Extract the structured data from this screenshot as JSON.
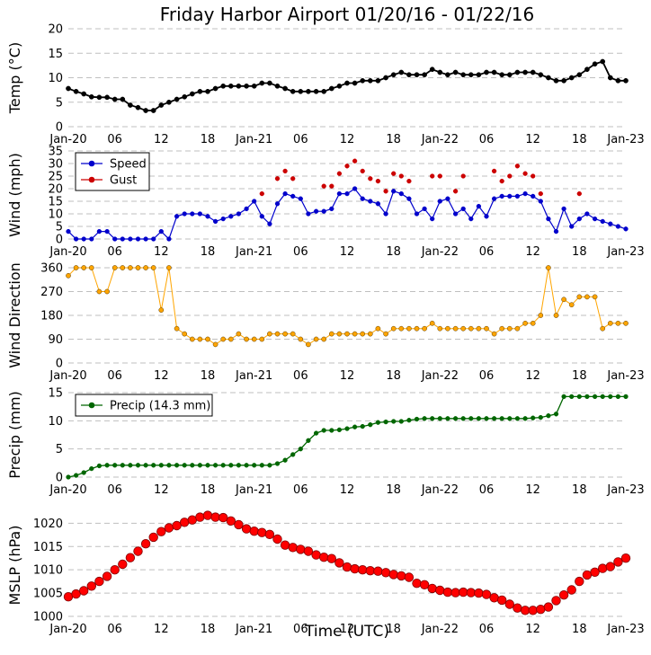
{
  "title": "Friday Harbor Airport 01/20/16 - 01/22/16",
  "xlabel": "Time (UTC)",
  "x_ticks": [
    "Jan-20",
    "06",
    "12",
    "18",
    "Jan-21",
    "06",
    "12",
    "18",
    "Jan-22",
    "06",
    "12",
    "18",
    "Jan-23"
  ],
  "colors": {
    "temp": "#000000",
    "speed": "#0000cc",
    "gust": "#cc0000",
    "direction": "#ffa500",
    "precip": "#006600",
    "mslp": "#ff0000",
    "grid": "#bfbfbf"
  },
  "chart_data": [
    {
      "type": "line",
      "id": "temp",
      "ylabel": "Temp (°C)",
      "ylim": [
        0,
        20
      ],
      "yticks": [
        "0",
        "5",
        "10",
        "15",
        "20"
      ],
      "x_unit": "hours since Jan-20 00 UTC",
      "series": [
        {
          "name": "Temp",
          "x": [
            0,
            1,
            2,
            3,
            4,
            5,
            6,
            7,
            8,
            9,
            10,
            11,
            12,
            13,
            14,
            15,
            16,
            17,
            18,
            19,
            20,
            21,
            22,
            23,
            24,
            25,
            26,
            27,
            28,
            29,
            30,
            31,
            32,
            33,
            34,
            35,
            36,
            37,
            38,
            39,
            40,
            41,
            42,
            43,
            44,
            45,
            46,
            47,
            48,
            49,
            50,
            51,
            52,
            53,
            54,
            55,
            56,
            57,
            58,
            59,
            60,
            61,
            62,
            63,
            64,
            65,
            66,
            67,
            68,
            69,
            70,
            71,
            72
          ],
          "y": [
            7.8,
            7.2,
            6.7,
            6.1,
            6.0,
            6.0,
            5.6,
            5.6,
            4.4,
            3.9,
            3.3,
            3.3,
            4.4,
            5.0,
            5.6,
            6.1,
            6.7,
            7.2,
            7.2,
            7.8,
            8.3,
            8.3,
            8.3,
            8.3,
            8.3,
            8.9,
            8.9,
            8.3,
            7.8,
            7.2,
            7.2,
            7.2,
            7.2,
            7.2,
            7.8,
            8.3,
            8.9,
            8.9,
            9.4,
            9.4,
            9.4,
            10.0,
            10.6,
            11.1,
            10.6,
            10.6,
            10.6,
            11.7,
            11.1,
            10.6,
            11.1,
            10.6,
            10.6,
            10.6,
            11.1,
            11.1,
            10.6,
            10.6,
            11.1,
            11.1,
            11.1,
            10.6,
            10.0,
            9.4,
            9.4,
            10.0,
            10.6,
            11.7,
            12.8,
            13.3,
            10.0,
            9.4,
            9.4
          ]
        }
      ]
    },
    {
      "type": "line",
      "id": "wind",
      "ylabel": "Wind (mph)",
      "ylim": [
        0,
        35
      ],
      "yticks": [
        "0",
        "5",
        "10",
        "15",
        "20",
        "25",
        "30",
        "35"
      ],
      "legend": "upper-left",
      "series": [
        {
          "name": "Speed",
          "x": [
            0,
            1,
            2,
            3,
            4,
            5,
            6,
            7,
            8,
            9,
            10,
            11,
            12,
            13,
            14,
            15,
            16,
            17,
            18,
            19,
            20,
            21,
            22,
            23,
            24,
            25,
            26,
            27,
            28,
            29,
            30,
            31,
            32,
            33,
            34,
            35,
            36,
            37,
            38,
            39,
            40,
            41,
            42,
            43,
            44,
            45,
            46,
            47,
            48,
            49,
            50,
            51,
            52,
            53,
            54,
            55,
            56,
            57,
            58,
            59,
            60,
            61,
            62,
            63,
            64,
            65,
            66,
            67,
            68,
            69,
            70,
            71,
            72
          ],
          "y": [
            3,
            0,
            0,
            0,
            3,
            3,
            0,
            0,
            0,
            0,
            0,
            0,
            3,
            0,
            9,
            10,
            10,
            10,
            9,
            7,
            8,
            9,
            10,
            12,
            15,
            9,
            6,
            14,
            18,
            17,
            16,
            10,
            11,
            11,
            12,
            18,
            18,
            20,
            16,
            15,
            14,
            10,
            19,
            18,
            16,
            10,
            12,
            8,
            15,
            16,
            10,
            12,
            8,
            13,
            9,
            16,
            17,
            17,
            17,
            18,
            17,
            15,
            8,
            3,
            12,
            5,
            8,
            10,
            8,
            7,
            6,
            5,
            4
          ]
        },
        {
          "name": "Gust",
          "x": [
            25,
            27,
            28,
            29,
            31,
            33,
            34,
            35,
            36,
            37,
            38,
            39,
            40,
            41,
            42,
            43,
            44,
            45,
            46,
            47,
            48,
            49,
            50,
            51,
            52,
            53,
            54,
            55,
            56,
            57,
            58,
            59,
            60,
            61,
            62,
            63,
            64,
            65,
            66,
            67,
            68
          ],
          "y": [
            18,
            24,
            27,
            24,
            null,
            21,
            21,
            26,
            29,
            31,
            27,
            24,
            23,
            19,
            26,
            25,
            23,
            null,
            null,
            25,
            25,
            null,
            19,
            25,
            null,
            null,
            null,
            27,
            23,
            25,
            29,
            26,
            25,
            18,
            null,
            null,
            null,
            null,
            18,
            null,
            null
          ]
        }
      ]
    },
    {
      "type": "line",
      "id": "direction",
      "ylabel": "Wind Direction",
      "ylim": [
        0,
        360
      ],
      "yticks": [
        "0",
        "90",
        "180",
        "270",
        "360"
      ],
      "series": [
        {
          "name": "Direction",
          "x": [
            0,
            1,
            2,
            3,
            4,
            5,
            6,
            7,
            8,
            9,
            10,
            11,
            12,
            13,
            14,
            15,
            16,
            17,
            18,
            19,
            20,
            21,
            22,
            23,
            24,
            25,
            26,
            27,
            28,
            29,
            30,
            31,
            32,
            33,
            34,
            35,
            36,
            37,
            38,
            39,
            40,
            41,
            42,
            43,
            44,
            45,
            46,
            47,
            48,
            49,
            50,
            51,
            52,
            53,
            54,
            55,
            56,
            57,
            58,
            59,
            60,
            61,
            62,
            63,
            64,
            65,
            66,
            67,
            68,
            69,
            70,
            71,
            72
          ],
          "y": [
            330,
            360,
            360,
            360,
            270,
            270,
            360,
            360,
            360,
            360,
            360,
            360,
            200,
            360,
            130,
            110,
            90,
            90,
            90,
            70,
            90,
            90,
            110,
            90,
            90,
            90,
            110,
            110,
            110,
            110,
            90,
            70,
            90,
            90,
            110,
            110,
            110,
            110,
            110,
            110,
            130,
            110,
            130,
            130,
            130,
            130,
            130,
            150,
            130,
            130,
            130,
            130,
            130,
            130,
            130,
            110,
            130,
            130,
            130,
            150,
            150,
            180,
            360,
            180,
            240,
            220,
            250,
            250,
            250,
            130,
            150,
            150,
            150
          ]
        }
      ]
    },
    {
      "type": "line",
      "id": "precip",
      "ylabel": "Precip (mm)",
      "ylim": [
        0,
        15
      ],
      "yticks": [
        "0",
        "5",
        "10",
        "15"
      ],
      "legend": "upper-left",
      "series": [
        {
          "name": "Precip (14.3 mm)",
          "x": [
            0,
            1,
            2,
            3,
            4,
            5,
            6,
            7,
            8,
            9,
            10,
            11,
            12,
            13,
            14,
            15,
            16,
            17,
            18,
            19,
            20,
            21,
            22,
            23,
            24,
            25,
            26,
            27,
            28,
            29,
            30,
            31,
            32,
            33,
            34,
            35,
            36,
            37,
            38,
            39,
            40,
            41,
            42,
            43,
            44,
            45,
            46,
            47,
            48,
            49,
            50,
            51,
            52,
            53,
            54,
            55,
            56,
            57,
            58,
            59,
            60,
            61,
            62,
            63,
            64,
            65,
            66,
            67,
            68,
            69,
            70,
            71,
            72
          ],
          "y": [
            0,
            0.3,
            0.8,
            1.5,
            2.0,
            2.1,
            2.1,
            2.1,
            2.1,
            2.1,
            2.1,
            2.1,
            2.1,
            2.1,
            2.1,
            2.1,
            2.1,
            2.1,
            2.1,
            2.1,
            2.1,
            2.1,
            2.1,
            2.1,
            2.1,
            2.1,
            2.1,
            2.4,
            3.0,
            4.0,
            5.0,
            6.5,
            7.8,
            8.3,
            8.3,
            8.4,
            8.6,
            8.9,
            9.0,
            9.3,
            9.7,
            9.8,
            9.9,
            9.9,
            10.1,
            10.3,
            10.4,
            10.4,
            10.4,
            10.4,
            10.4,
            10.4,
            10.4,
            10.4,
            10.4,
            10.4,
            10.4,
            10.4,
            10.4,
            10.4,
            10.5,
            10.6,
            10.9,
            11.2,
            14.3,
            14.3,
            14.3,
            14.3,
            14.3,
            14.3,
            14.3,
            14.3,
            14.3
          ]
        }
      ]
    },
    {
      "type": "line",
      "id": "mslp",
      "ylabel": "MSLP (hPa)",
      "ylim": [
        1000,
        1022
      ],
      "yticks": [
        "1000",
        "1005",
        "1010",
        "1015",
        "1020"
      ],
      "series": [
        {
          "name": "MSLP",
          "x": [
            0,
            1,
            2,
            3,
            4,
            5,
            6,
            7,
            8,
            9,
            10,
            11,
            12,
            13,
            14,
            15,
            16,
            17,
            18,
            19,
            20,
            21,
            22,
            23,
            24,
            25,
            26,
            27,
            28,
            29,
            30,
            31,
            32,
            33,
            34,
            35,
            36,
            37,
            38,
            39,
            40,
            41,
            42,
            43,
            44,
            45,
            46,
            47,
            48,
            49,
            50,
            51,
            52,
            53,
            54,
            55,
            56,
            57,
            58,
            59,
            60,
            61,
            62,
            63,
            64,
            65,
            66,
            67,
            68,
            69,
            70,
            71,
            72
          ],
          "y": [
            1004.2,
            1004.8,
            1005.5,
            1006.5,
            1007.5,
            1008.6,
            1010.0,
            1011.2,
            1012.6,
            1014.0,
            1015.6,
            1017.0,
            1018.2,
            1019.0,
            1019.5,
            1020.2,
            1020.7,
            1021.3,
            1021.7,
            1021.3,
            1021.2,
            1020.5,
            1019.7,
            1018.8,
            1018.3,
            1018.0,
            1017.6,
            1016.6,
            1015.3,
            1014.8,
            1014.4,
            1014.0,
            1013.2,
            1012.7,
            1012.4,
            1011.5,
            1010.6,
            1010.2,
            1010.0,
            1009.8,
            1009.7,
            1009.4,
            1009.0,
            1008.7,
            1008.4,
            1007.1,
            1006.8,
            1006.0,
            1005.6,
            1005.2,
            1005.1,
            1005.2,
            1005.1,
            1005.0,
            1004.7,
            1004.0,
            1003.5,
            1002.6,
            1001.8,
            1001.3,
            1001.3,
            1001.5,
            1002.0,
            1003.4,
            1004.6,
            1005.7,
            1007.5,
            1008.9,
            1009.5,
            1010.3,
            1010.7,
            1011.7,
            1012.5
          ]
        }
      ]
    }
  ]
}
